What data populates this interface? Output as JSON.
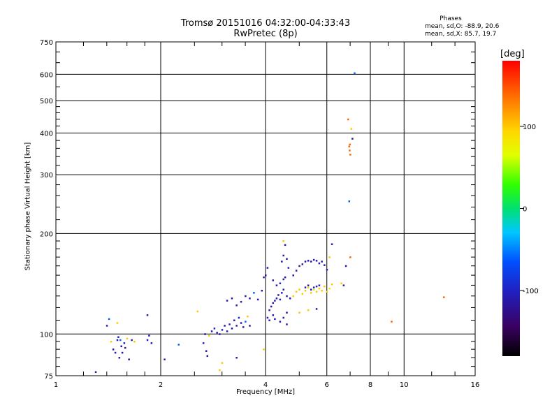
{
  "chart_data": {
    "type": "scatter",
    "title": "Tromsø 20151016 04:32:00-04:33:43",
    "subtitle": "RwPretec (8p)",
    "xlabel": "Frequency [MHz]",
    "ylabel": "Stationary phase Virtual Height [km]",
    "x_scale": "log",
    "y_scale": "log",
    "xlim": [
      1,
      16
    ],
    "ylim": [
      75,
      750
    ],
    "x_ticks": [
      1,
      2,
      4,
      6,
      8,
      10,
      16
    ],
    "y_ticks": [
      75,
      100,
      200,
      300,
      400,
      500,
      600,
      750
    ],
    "grid": true,
    "stats": {
      "title": "Phases",
      "o_mode": "mean, sd,O: -88.9, 20.6",
      "x_mode": "mean, sd,X:  85.7, 19.7"
    },
    "colorbar": {
      "label": "[deg]",
      "range": [
        -180,
        180
      ],
      "ticks": [
        100,
        0,
        -100
      ]
    },
    "points": [
      [
        1.3,
        77,
        -110
      ],
      [
        1.4,
        106,
        -100
      ],
      [
        1.42,
        111,
        -60
      ],
      [
        1.44,
        95,
        100
      ],
      [
        1.46,
        90,
        -120
      ],
      [
        1.48,
        88,
        -110
      ],
      [
        1.5,
        96,
        -110
      ],
      [
        1.51,
        98,
        -100
      ],
      [
        1.52,
        85,
        -110
      ],
      [
        1.53,
        96,
        -60
      ],
      [
        1.54,
        92,
        -110
      ],
      [
        1.55,
        88,
        -120
      ],
      [
        1.57,
        94,
        -100
      ],
      [
        1.58,
        91,
        -110
      ],
      [
        1.6,
        97,
        100
      ],
      [
        1.62,
        84,
        -120
      ],
      [
        1.65,
        96,
        -110
      ],
      [
        1.68,
        95,
        100
      ],
      [
        1.5,
        108,
        100
      ],
      [
        1.83,
        114,
        -110
      ],
      [
        1.83,
        96,
        -110
      ],
      [
        1.85,
        99,
        -100
      ],
      [
        1.88,
        94,
        -110
      ],
      [
        2.05,
        84,
        -110
      ],
      [
        2.25,
        93,
        -60
      ],
      [
        2.55,
        117,
        100
      ],
      [
        2.65,
        94,
        -110
      ],
      [
        2.7,
        89,
        -110
      ],
      [
        2.72,
        86,
        -120
      ],
      [
        2.68,
        100,
        -110
      ],
      [
        2.75,
        99,
        100
      ],
      [
        2.8,
        102,
        -110
      ],
      [
        2.85,
        104,
        -100
      ],
      [
        2.9,
        101,
        -110
      ],
      [
        2.95,
        100,
        -110
      ],
      [
        3.0,
        103,
        -100
      ],
      [
        3.05,
        106,
        -110
      ],
      [
        3.1,
        102,
        -110
      ],
      [
        3.15,
        107,
        -100
      ],
      [
        3.2,
        104,
        -110
      ],
      [
        3.25,
        110,
        -110
      ],
      [
        3.3,
        106,
        -110
      ],
      [
        3.35,
        112,
        -100
      ],
      [
        3.4,
        108,
        -110
      ],
      [
        3.45,
        105,
        -110
      ],
      [
        3.5,
        109,
        -60
      ],
      [
        3.55,
        113,
        100
      ],
      [
        3.6,
        106,
        -110
      ],
      [
        3.1,
        126,
        -110
      ],
      [
        3.2,
        128,
        -110
      ],
      [
        3.3,
        122,
        -110
      ],
      [
        3.4,
        125,
        -100
      ],
      [
        3.5,
        130,
        -110
      ],
      [
        3.6,
        128,
        -110
      ],
      [
        3.7,
        133,
        -60
      ],
      [
        3.8,
        127,
        -110
      ],
      [
        3.9,
        135,
        -110
      ],
      [
        4.0,
        150,
        -110
      ],
      [
        4.05,
        158,
        -110
      ],
      [
        3.95,
        148,
        -110
      ],
      [
        4.1,
        118,
        -110
      ],
      [
        4.15,
        121,
        -110
      ],
      [
        4.2,
        124,
        -110
      ],
      [
        4.25,
        126,
        -100
      ],
      [
        4.3,
        128,
        -110
      ],
      [
        4.35,
        131,
        -110
      ],
      [
        4.4,
        127,
        -110
      ],
      [
        4.45,
        133,
        -100
      ],
      [
        4.5,
        136,
        -110
      ],
      [
        4.6,
        130,
        -110
      ],
      [
        4.7,
        128,
        -110
      ],
      [
        4.2,
        145,
        -110
      ],
      [
        4.3,
        140,
        -110
      ],
      [
        4.4,
        142,
        -100
      ],
      [
        4.5,
        146,
        -110
      ],
      [
        4.55,
        148,
        -110
      ],
      [
        4.45,
        165,
        -110
      ],
      [
        4.5,
        172,
        -110
      ],
      [
        4.6,
        168,
        -110
      ],
      [
        4.65,
        158,
        -100
      ],
      [
        4.5,
        190,
        100
      ],
      [
        4.55,
        185,
        -110
      ],
      [
        4.05,
        112,
        -110
      ],
      [
        4.1,
        110,
        -110
      ],
      [
        4.2,
        114,
        -110
      ],
      [
        4.25,
        111,
        -100
      ],
      [
        4.4,
        109,
        -110
      ],
      [
        4.5,
        112,
        -110
      ],
      [
        4.6,
        116,
        -110
      ],
      [
        4.8,
        130,
        100
      ],
      [
        4.9,
        134,
        100
      ],
      [
        5.0,
        136,
        100
      ],
      [
        5.1,
        132,
        100
      ],
      [
        5.2,
        135,
        100
      ],
      [
        5.3,
        138,
        100
      ],
      [
        5.4,
        133,
        100
      ],
      [
        5.5,
        136,
        60
      ],
      [
        5.6,
        134,
        100
      ],
      [
        5.7,
        137,
        100
      ],
      [
        5.8,
        135,
        100
      ],
      [
        5.9,
        139,
        100
      ],
      [
        6.0,
        134,
        100
      ],
      [
        6.1,
        137,
        80
      ],
      [
        6.2,
        141,
        100
      ],
      [
        5.2,
        138,
        -110
      ],
      [
        5.3,
        140,
        -110
      ],
      [
        5.4,
        136,
        -110
      ],
      [
        5.5,
        138,
        -110
      ],
      [
        5.6,
        139,
        -110
      ],
      [
        5.7,
        140,
        -110
      ],
      [
        4.8,
        150,
        -110
      ],
      [
        4.9,
        155,
        -110
      ],
      [
        5.0,
        160,
        -110
      ],
      [
        5.1,
        162,
        -110
      ],
      [
        5.2,
        165,
        -110
      ],
      [
        5.3,
        166,
        -110
      ],
      [
        5.4,
        165,
        -110
      ],
      [
        5.5,
        167,
        -110
      ],
      [
        5.6,
        166,
        -110
      ],
      [
        5.7,
        163,
        -110
      ],
      [
        5.8,
        165,
        -110
      ],
      [
        5.9,
        161,
        -110
      ],
      [
        6.0,
        156,
        -110
      ],
      [
        6.1,
        170,
        100
      ],
      [
        6.2,
        186,
        -110
      ],
      [
        6.6,
        142,
        100
      ],
      [
        6.7,
        140,
        -110
      ],
      [
        7.0,
        170,
        140
      ],
      [
        6.8,
        160,
        -110
      ],
      [
        5.0,
        116,
        100
      ],
      [
        5.3,
        118,
        100
      ],
      [
        5.6,
        119,
        -110
      ],
      [
        4.6,
        107,
        -110
      ],
      [
        6.9,
        440,
        140
      ],
      [
        6.95,
        365,
        140
      ],
      [
        6.97,
        355,
        140
      ],
      [
        7.0,
        345,
        140
      ],
      [
        6.98,
        370,
        140
      ],
      [
        7.05,
        412,
        100
      ],
      [
        7.1,
        385,
        -110
      ],
      [
        6.95,
        250,
        -60
      ],
      [
        7.2,
        605,
        -60
      ],
      [
        9.2,
        109,
        140
      ],
      [
        13.0,
        129,
        140
      ],
      [
        3.0,
        82,
        100
      ],
      [
        3.3,
        85,
        -110
      ],
      [
        3.95,
        90,
        100
      ],
      [
        2.95,
        78,
        100
      ]
    ]
  }
}
